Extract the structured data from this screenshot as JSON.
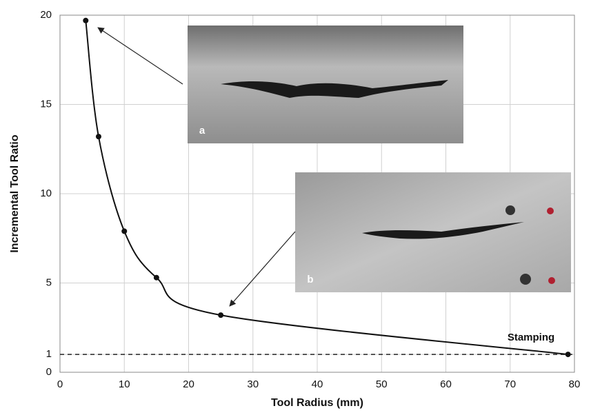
{
  "chart_data": {
    "type": "line",
    "x_label": "Tool Radius (mm)",
    "y_label": "Incremental Tool Ratio",
    "x": [
      4,
      6,
      10,
      15,
      25,
      79
    ],
    "values": [
      19.7,
      13.2,
      7.9,
      5.3,
      3.2,
      1.0
    ],
    "color": "#111111",
    "xlim": [
      0,
      80
    ],
    "xticks": [
      0,
      10,
      20,
      30,
      40,
      50,
      60,
      70,
      80
    ],
    "ylim": [
      0,
      20
    ],
    "yticks": [
      0,
      1,
      5,
      10,
      15,
      20
    ],
    "grid": true,
    "hline": 1,
    "annotations": [
      "Stamping",
      "a",
      "b"
    ]
  }
}
